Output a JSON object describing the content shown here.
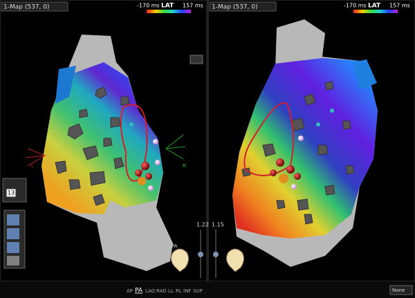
{
  "panels": [
    {
      "map_selector": "1-Map (537, 0)",
      "scale": {
        "min": "-170 ms",
        "label": "LAT",
        "max": "157 ms"
      },
      "zoom": "1.22"
    },
    {
      "map_selector": "1-Map (537, 0)",
      "scale": {
        "min": "-170 ms",
        "label": "LAT",
        "max": "157 ms"
      },
      "zoom": "1.15"
    }
  ],
  "orientation": {
    "left": "L",
    "right": "R",
    "view": "PA"
  },
  "toolbar": {
    "count": "13"
  },
  "view_buttons": [
    "AP",
    "PA",
    "LAO",
    "RAO",
    "LL",
    "RL",
    "INF",
    "SUP"
  ],
  "display_option": "None"
}
